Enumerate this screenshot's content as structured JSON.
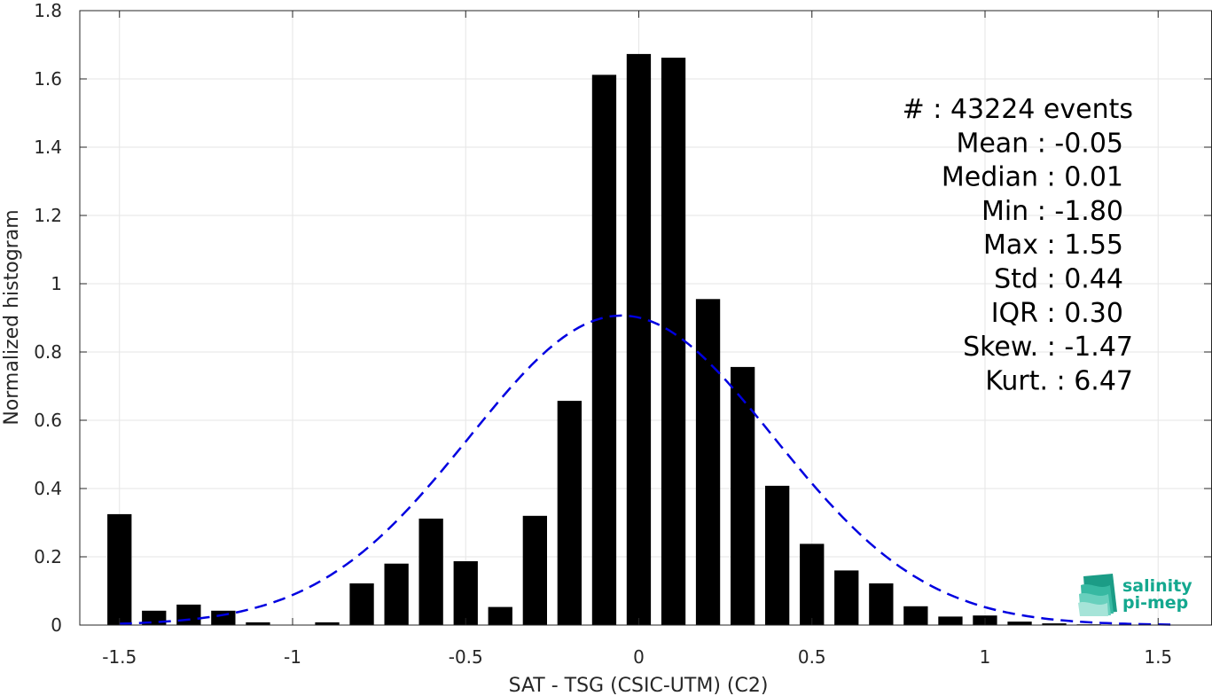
{
  "chart_data": {
    "type": "bar",
    "xlabel": "SAT - TSG (CSIC-UTM) (C2)",
    "ylabel": "Normalized histogram",
    "xlim": [
      -1.6,
      1.6
    ],
    "ylim": [
      0,
      1.8
    ],
    "x_ticks": [
      -1.5,
      -1,
      -0.5,
      0,
      0.5,
      1,
      1.5
    ],
    "x_tick_labels": [
      "-1.5",
      "-1",
      "-0.5",
      "0",
      "0.5",
      "1",
      "1.5"
    ],
    "y_ticks": [
      0,
      0.2,
      0.4,
      0.6,
      0.8,
      1,
      1.2,
      1.4,
      1.6,
      1.8
    ],
    "y_tick_labels": [
      "0",
      "0.2",
      "0.4",
      "0.6",
      "0.8",
      "1",
      "1.2",
      "1.4",
      "1.6",
      "1.8"
    ],
    "grid": true,
    "bar_width": 0.07,
    "bar_color": "#000000",
    "bins": [
      {
        "x": -1.5,
        "y": 0.325
      },
      {
        "x": -1.4,
        "y": 0.042
      },
      {
        "x": -1.3,
        "y": 0.06
      },
      {
        "x": -1.2,
        "y": 0.042
      },
      {
        "x": -1.1,
        "y": 0.008
      },
      {
        "x": -1.0,
        "y": 0.0
      },
      {
        "x": -0.9,
        "y": 0.008
      },
      {
        "x": -0.8,
        "y": 0.122
      },
      {
        "x": -0.7,
        "y": 0.18
      },
      {
        "x": -0.6,
        "y": 0.312
      },
      {
        "x": -0.5,
        "y": 0.187
      },
      {
        "x": -0.4,
        "y": 0.053
      },
      {
        "x": -0.3,
        "y": 0.32
      },
      {
        "x": -0.2,
        "y": 0.657
      },
      {
        "x": -0.1,
        "y": 1.612
      },
      {
        "x": 0.0,
        "y": 1.673
      },
      {
        "x": 0.1,
        "y": 1.662
      },
      {
        "x": 0.2,
        "y": 0.955
      },
      {
        "x": 0.3,
        "y": 0.756
      },
      {
        "x": 0.4,
        "y": 0.408
      },
      {
        "x": 0.5,
        "y": 0.238
      },
      {
        "x": 0.6,
        "y": 0.16
      },
      {
        "x": 0.7,
        "y": 0.122
      },
      {
        "x": 0.8,
        "y": 0.055
      },
      {
        "x": 0.9,
        "y": 0.025
      },
      {
        "x": 1.0,
        "y": 0.028
      },
      {
        "x": 1.1,
        "y": 0.01
      },
      {
        "x": 1.2,
        "y": 0.005
      },
      {
        "x": 1.3,
        "y": 0.002
      },
      {
        "x": 1.4,
        "y": 0.001
      },
      {
        "x": 1.5,
        "y": 0.001
      }
    ],
    "gaussian_fit": {
      "mean": -0.05,
      "std": 0.44,
      "x_range": [
        -1.5,
        1.55
      ],
      "color": "#0000e0",
      "style": "dashed"
    },
    "stats": [
      "#  : 43224 events",
      "Mean : -0.05",
      "Median : 0.01",
      "Min : -1.80",
      "Max : 1.55",
      "Std : 0.44",
      "IQR : 0.30",
      "Skew. : -1.47",
      "Kurt. : 6.47"
    ],
    "stats_placement": "top-right"
  },
  "logo": {
    "line1": "salinity",
    "line2": "pi-mep",
    "color": "#14a88f"
  }
}
